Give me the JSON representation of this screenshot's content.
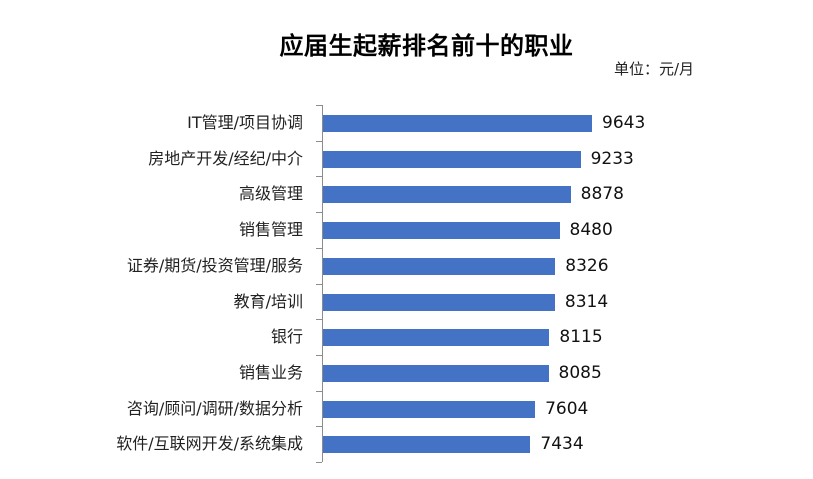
{
  "chart_data": {
    "type": "bar",
    "orientation": "horizontal",
    "title": "应届生起薪排名前十的职业",
    "unit_label": "单位：元/月",
    "xlabel": "",
    "ylabel": "",
    "categories": [
      "IT管理/项目协调",
      "房地产开发/经纪/中介",
      "高级管理",
      "销售管理",
      "证券/期货/投资管理/服务",
      "教育/培训",
      "银行",
      "销售业务",
      "咨询/顾问/调研/数据分析",
      "软件/互联网开发/系统集成"
    ],
    "values": [
      9643,
      9233,
      8878,
      8480,
      8326,
      8314,
      8115,
      8085,
      7604,
      7434
    ],
    "value_labels": [
      "9643",
      "9233",
      "8878",
      "8480",
      "8326",
      "8314",
      "8115",
      "8085",
      "7604",
      "7434"
    ],
    "xlim": [
      0,
      9643
    ],
    "grid": false,
    "legend": "none",
    "bar_color": "#4472C4",
    "data_labels": true
  }
}
